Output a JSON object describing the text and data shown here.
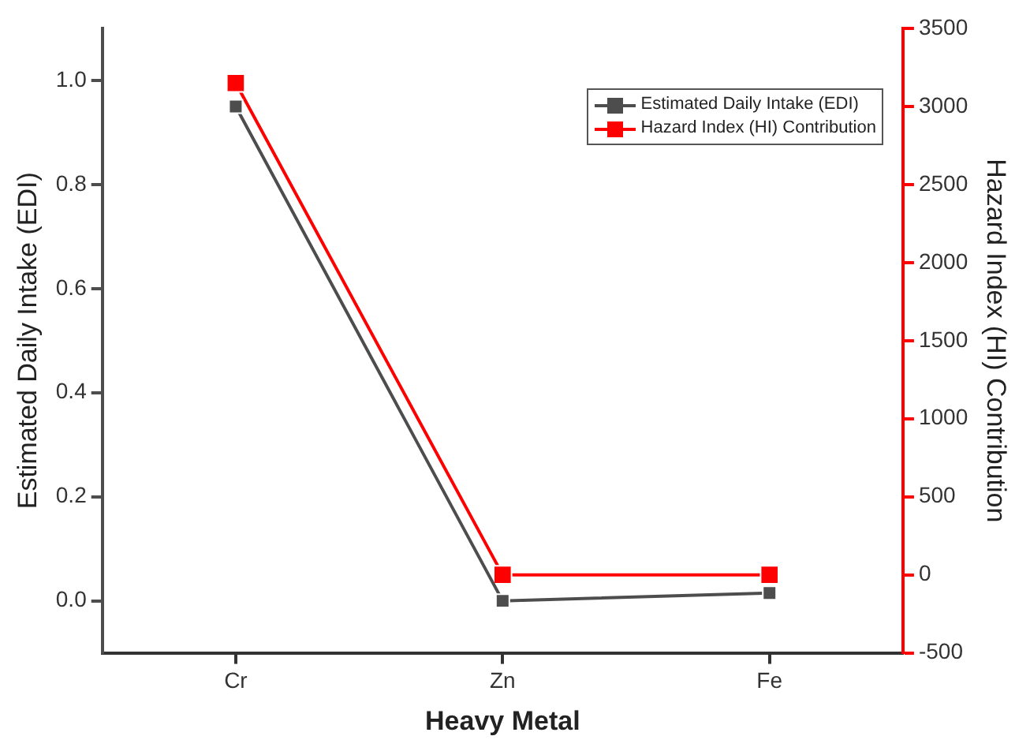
{
  "chart_data": {
    "type": "line",
    "xlabel": "Heavy Metal",
    "ylabel": "Estimated Daily Intake (EDI)",
    "y2label": "Hazard Index (HI) Contribution",
    "categories": [
      "Cr",
      "Zn",
      "Fe"
    ],
    "series": [
      {
        "name": "Estimated Daily Intake (EDI)",
        "color": "#4d4d4d",
        "values": [
          0.95,
          0.0,
          0.015
        ]
      },
      {
        "name": "Hazard Index (HI) Contribution",
        "color": "#ff0000",
        "axis": "y2",
        "values": [
          3150,
          0,
          0
        ]
      }
    ],
    "ylim": [
      -0.1,
      1.1
    ],
    "yticks": [
      {
        "value": 0,
        "label": "0.0"
      },
      0.2,
      0.4,
      0.6,
      0.8,
      {
        "value": 1,
        "label": "1.0"
      }
    ],
    "y2lim": [
      -500,
      3500
    ],
    "y2ticks": [
      -500,
      0,
      500,
      1000,
      1500,
      2000,
      2500,
      3000,
      3500
    ],
    "grid": false,
    "legend": "top right",
    "marker": "square",
    "line_style": "solid"
  }
}
